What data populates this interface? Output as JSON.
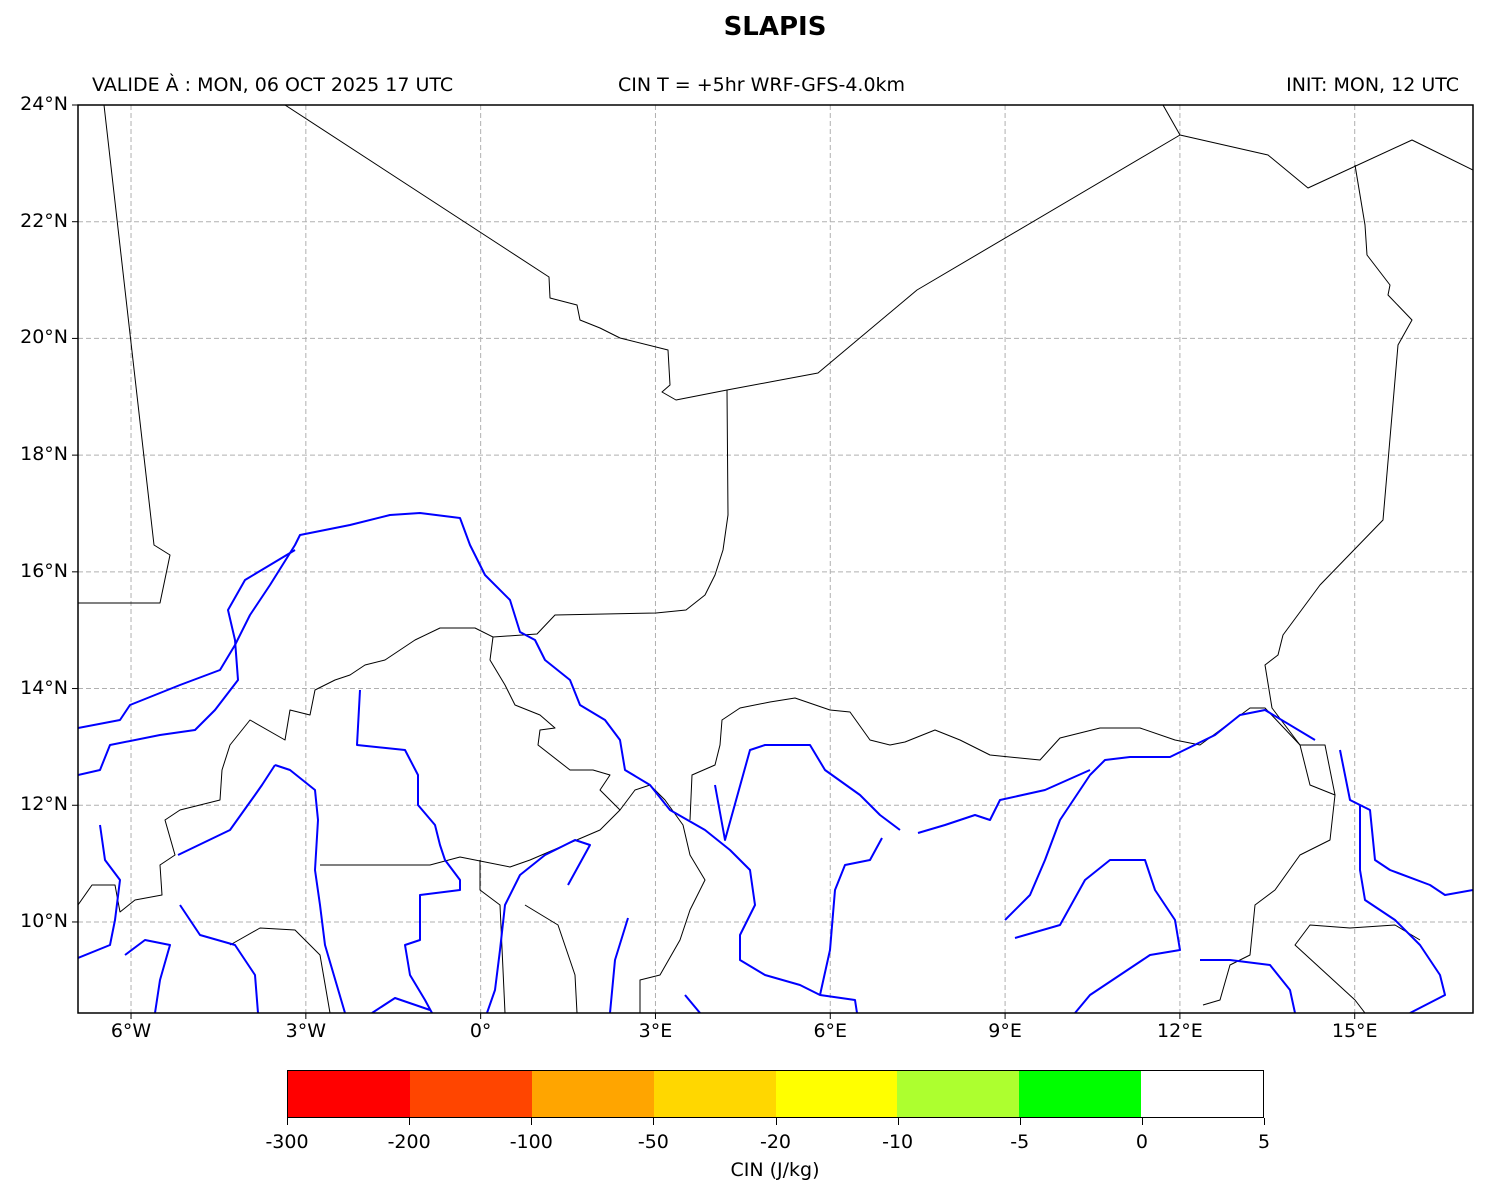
{
  "header": {
    "title": "SLAPIS",
    "valid": "VALIDE À : MON, 06 OCT 2025 17 UTC",
    "field": "CIN T = +5hr WRF-GFS-4.0km",
    "init": "INIT: MON, 12 UTC"
  },
  "map": {
    "lon_ticks": [
      {
        "v": -6,
        "label": "6°W"
      },
      {
        "v": -3,
        "label": "3°W"
      },
      {
        "v": 0,
        "label": "0°"
      },
      {
        "v": 3,
        "label": "3°E"
      },
      {
        "v": 6,
        "label": "6°E"
      },
      {
        "v": 9,
        "label": "9°E"
      },
      {
        "v": 12,
        "label": "12°E"
      },
      {
        "v": 15,
        "label": "15°E"
      }
    ],
    "lat_ticks": [
      {
        "v": 10,
        "label": "10°N"
      },
      {
        "v": 12,
        "label": "12°N"
      },
      {
        "v": 14,
        "label": "14°N"
      },
      {
        "v": 16,
        "label": "16°N"
      },
      {
        "v": 18,
        "label": "18°N"
      },
      {
        "v": 20,
        "label": "20°N"
      },
      {
        "v": 22,
        "label": "22°N"
      },
      {
        "v": 24,
        "label": "24°N"
      }
    ],
    "border_color": "#000000",
    "river_color": "#0000ff",
    "grid": "dashed"
  },
  "colorbar": {
    "label": "CIN (J/kg)",
    "ticks": [
      "-300",
      "-200",
      "-100",
      "-50",
      "-20",
      "-10",
      "-5",
      "0",
      "5"
    ],
    "colors": [
      "#ff0000",
      "#ff4500",
      "#ffa500",
      "#ffd700",
      "#ffff00",
      "#adff2f",
      "#00ff00",
      "#ffffff"
    ]
  }
}
